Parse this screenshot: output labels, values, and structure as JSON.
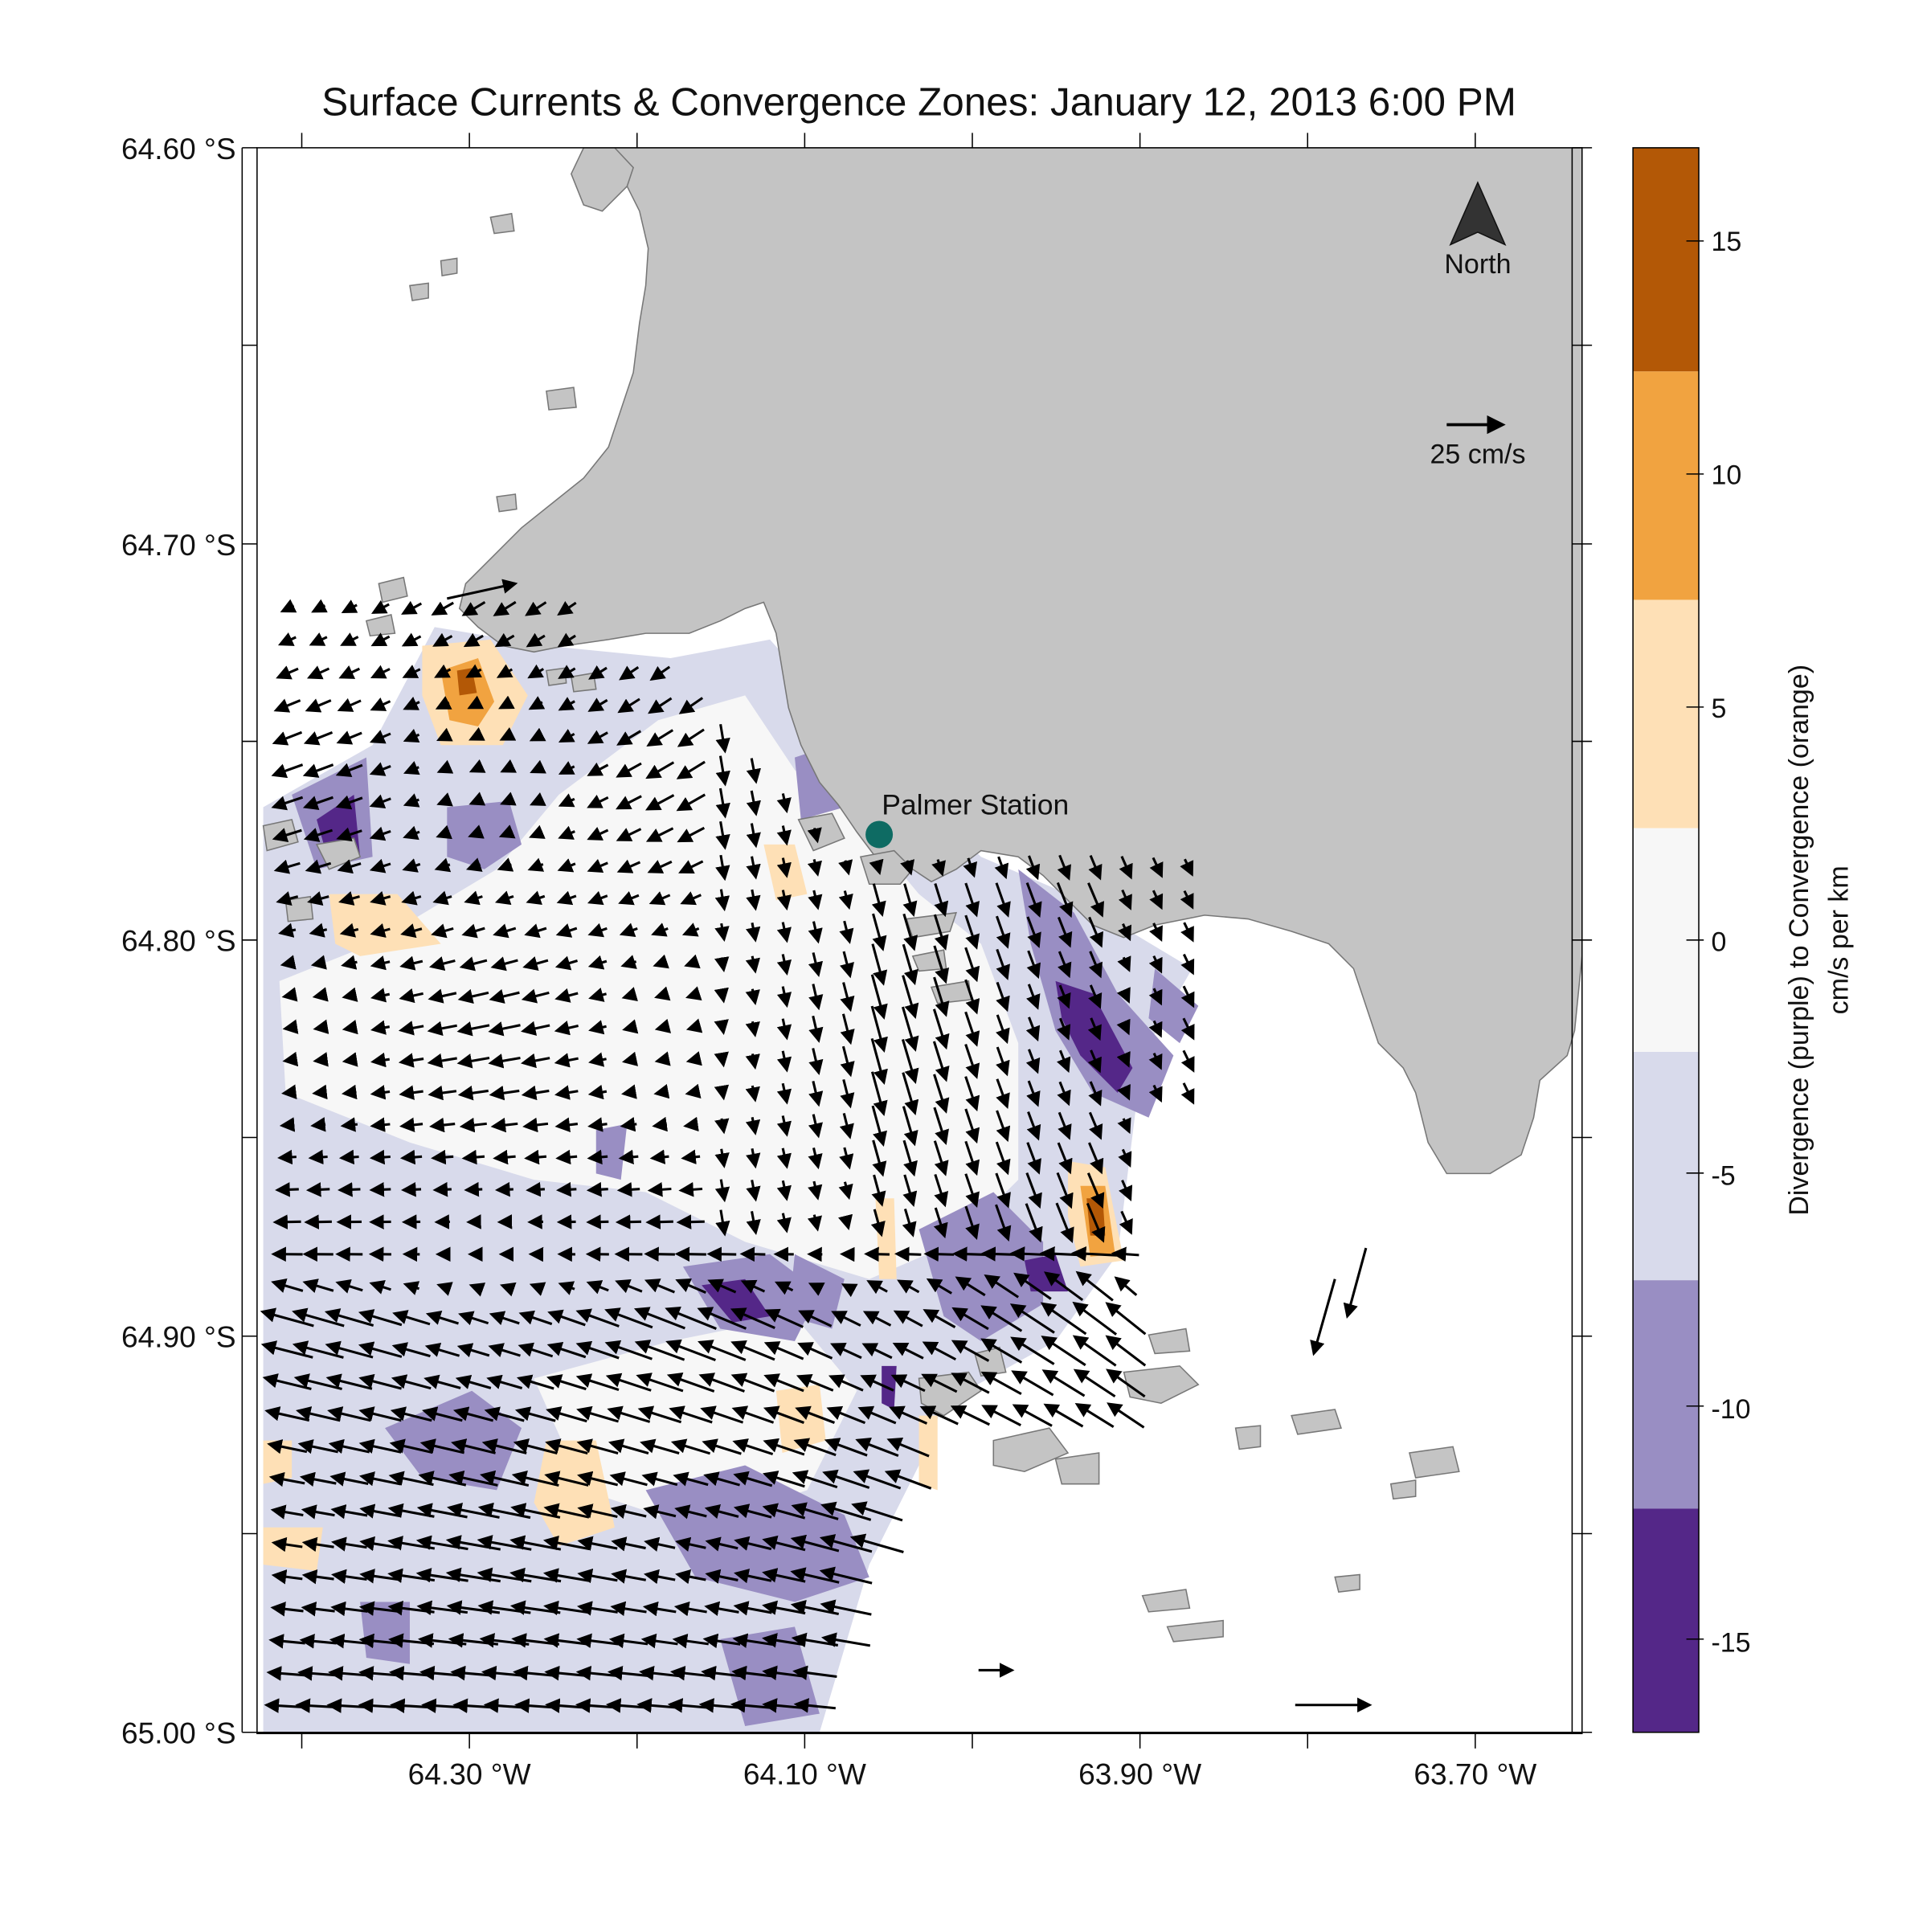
{
  "title": "Surface Currents & Convergence Zones: January 12, 2013 6:00 PM",
  "lat_labels": [
    "64.60 °S",
    "64.70 °S",
    "64.80 °S",
    "64.90 °S",
    "65.00 °S"
  ],
  "lon_labels": [
    "64.30 °W",
    "64.10 °W",
    "63.90 °W",
    "63.70 °W"
  ],
  "north_label": "North",
  "scale_label": "25 cm/s",
  "station": {
    "name": "Palmer Station",
    "lat": -64.774,
    "lon": -64.053
  },
  "colorbar": {
    "title_line1": "Divergence (purple) to Convergence (orange)",
    "title_line2": "cm/s per km",
    "ticks": [
      "15",
      "10",
      "5",
      "0",
      "-5",
      "-10",
      "-15"
    ],
    "tick_values": [
      15,
      10,
      5,
      0,
      -5,
      -10,
      -15
    ],
    "range": [
      -17,
      17
    ],
    "bands": [
      {
        "from": 12.2,
        "to": 17,
        "color": "#b35806"
      },
      {
        "from": 7.3,
        "to": 12.2,
        "color": "#f1a340"
      },
      {
        "from": 2.4,
        "to": 7.3,
        "color": "#fee0b6"
      },
      {
        "from": -2.4,
        "to": 2.4,
        "color": "#f7f7f7"
      },
      {
        "from": -7.3,
        "to": -2.4,
        "color": "#d8daeb"
      },
      {
        "from": -12.2,
        "to": -7.3,
        "color": "#998ec3"
      },
      {
        "from": -17,
        "to": -12.2,
        "color": "#542788"
      }
    ]
  },
  "colors": {
    "land": "#c4c4c4",
    "coast": "#777777",
    "arrow": "#000000",
    "station": "#0e6b63"
  },
  "chart_data": {
    "type": "map",
    "lat_range": [
      -65.0,
      -64.6
    ],
    "lon_range": [
      -64.45,
      -63.66
    ],
    "lat_ticks": [
      -64.6,
      -64.7,
      -64.8,
      -64.9,
      -65.0
    ],
    "lon_ticks": [
      -64.3,
      -64.1,
      -63.9,
      -63.7
    ],
    "vector_scale_cms": 25
  }
}
